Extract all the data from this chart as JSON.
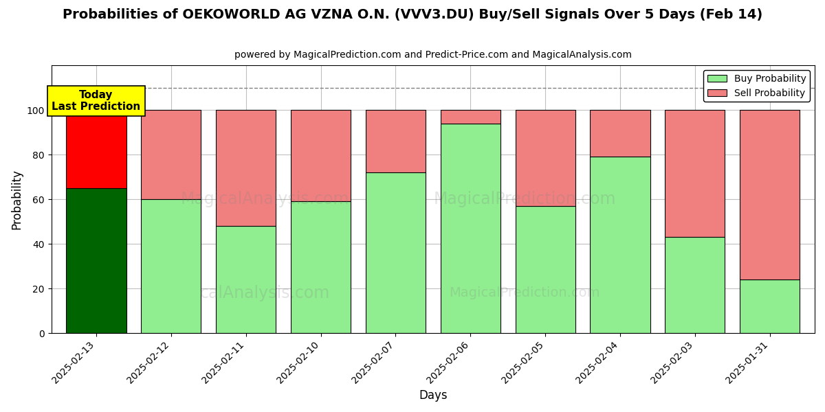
{
  "title": "Probabilities of OEKOWORLD AG VZNA O.N. (VVV3.DU) Buy/Sell Signals Over 5 Days (Feb 14)",
  "subtitle": "powered by MagicalPrediction.com and Predict-Price.com and MagicalAnalysis.com",
  "xlabel": "Days",
  "ylabel": "Probability",
  "categories": [
    "2025-02-13",
    "2025-02-12",
    "2025-02-11",
    "2025-02-10",
    "2025-02-07",
    "2025-02-06",
    "2025-02-05",
    "2025-02-04",
    "2025-02-03",
    "2025-01-31"
  ],
  "buy_values": [
    65,
    60,
    48,
    59,
    72,
    94,
    57,
    79,
    43,
    24
  ],
  "sell_values": [
    35,
    40,
    52,
    41,
    28,
    6,
    43,
    21,
    57,
    76
  ],
  "today_buy_color": "#006400",
  "today_sell_color": "#ff0000",
  "buy_color": "#90EE90",
  "sell_color": "#F08080",
  "today_annotation": "Today\nLast Prediction",
  "ylim": [
    0,
    120
  ],
  "yticks": [
    0,
    20,
    40,
    60,
    80,
    100
  ],
  "dashed_line_y": 110,
  "bar_edge_color": "black",
  "bar_linewidth": 0.8,
  "background_color": "white",
  "grid_color": "#c0c0c0",
  "legend_buy_label": "Buy Probability",
  "legend_sell_label": "Sell Probability",
  "title_fontsize": 14,
  "subtitle_fontsize": 10,
  "axis_label_fontsize": 12,
  "tick_fontsize": 10
}
